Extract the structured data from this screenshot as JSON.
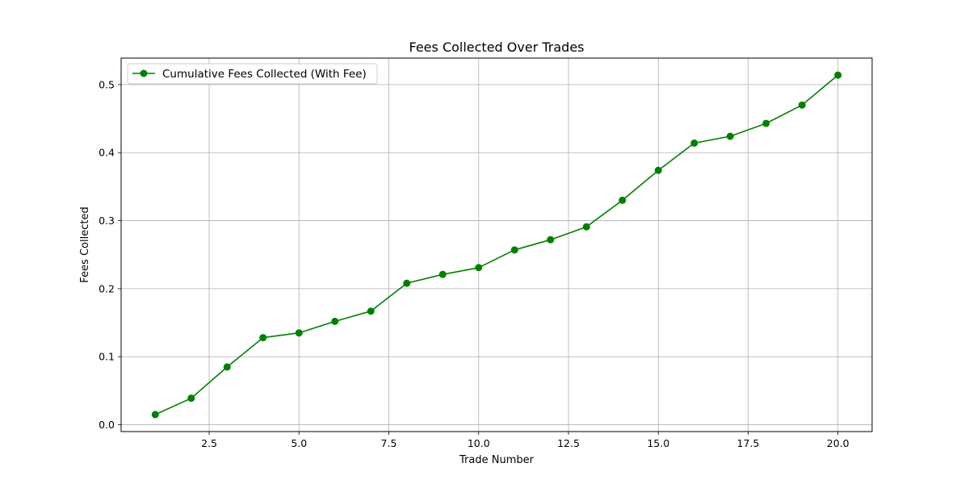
{
  "chart_data": {
    "type": "line",
    "title": "Fees Collected Over Trades",
    "xlabel": "Trade Number",
    "ylabel": "Fees Collected",
    "xlim": [
      0.05,
      20.95
    ],
    "ylim": [
      -0.01,
      0.539
    ],
    "x_ticks": [
      2.5,
      5.0,
      7.5,
      10.0,
      12.5,
      15.0,
      17.5,
      20.0
    ],
    "x_tick_labels": [
      "2.5",
      "5.0",
      "7.5",
      "10.0",
      "12.5",
      "15.0",
      "17.5",
      "20.0"
    ],
    "y_ticks": [
      0.0,
      0.1,
      0.2,
      0.3,
      0.4,
      0.5
    ],
    "y_tick_labels": [
      "0.0",
      "0.1",
      "0.2",
      "0.3",
      "0.4",
      "0.5"
    ],
    "grid": true,
    "legend_position": "top-left",
    "series": [
      {
        "name": "Cumulative Fees Collected (With Fee)",
        "color": "#008000",
        "marker": "circle",
        "x": [
          1,
          2,
          3,
          4,
          5,
          6,
          7,
          8,
          9,
          10,
          11,
          12,
          13,
          14,
          15,
          16,
          17,
          18,
          19,
          20
        ],
        "y": [
          0.015,
          0.039,
          0.085,
          0.128,
          0.135,
          0.152,
          0.167,
          0.208,
          0.221,
          0.231,
          0.257,
          0.272,
          0.291,
          0.33,
          0.374,
          0.414,
          0.424,
          0.443,
          0.47,
          0.514
        ]
      }
    ]
  }
}
